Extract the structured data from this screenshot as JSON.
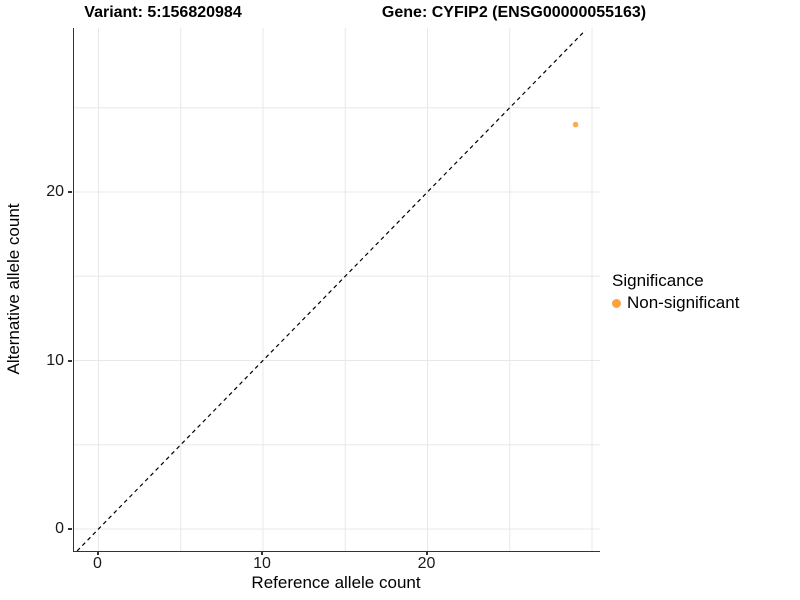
{
  "titles": {
    "left": "Variant: 5:156820984",
    "right": "Gene: CYFIP2 (ENSG00000055163)"
  },
  "axes": {
    "x_label": "Reference allele count",
    "y_label": "Alternative allele count"
  },
  "legend": {
    "title": "Significance",
    "items": [
      {
        "label": "Non-significant",
        "color": "#FBA33C"
      }
    ]
  },
  "colors": {
    "background": "#ffffff",
    "axis_line": "#333333",
    "gridline": "#e8e8e8",
    "identity_line": "#000000",
    "point_orange": "#FBA33C"
  },
  "chart_data": {
    "type": "scatter",
    "title": "Variant: 5:156820984    Gene: CYFIP2 (ENSG00000055163)",
    "xlabel": "Reference allele count",
    "ylabel": "Alternative allele count",
    "xlim": [
      -1.5,
      30.5
    ],
    "ylim": [
      -1.3,
      29.7
    ],
    "xticks": [
      0,
      10,
      20
    ],
    "yticks": [
      0,
      10,
      20
    ],
    "x_gridlines": [
      0,
      5,
      10,
      15,
      20,
      25,
      30
    ],
    "y_gridlines": [
      0,
      5,
      10,
      15,
      20,
      25
    ],
    "grid": true,
    "legend_position": "right",
    "identity_line": {
      "style": "dashed",
      "from": [
        -1.3,
        -1.3
      ],
      "to": [
        29.6,
        29.6
      ]
    },
    "series": [
      {
        "name": "Non-significant",
        "color": "#FBA33C",
        "points": [
          {
            "x": 29,
            "y": 24
          }
        ]
      }
    ]
  }
}
